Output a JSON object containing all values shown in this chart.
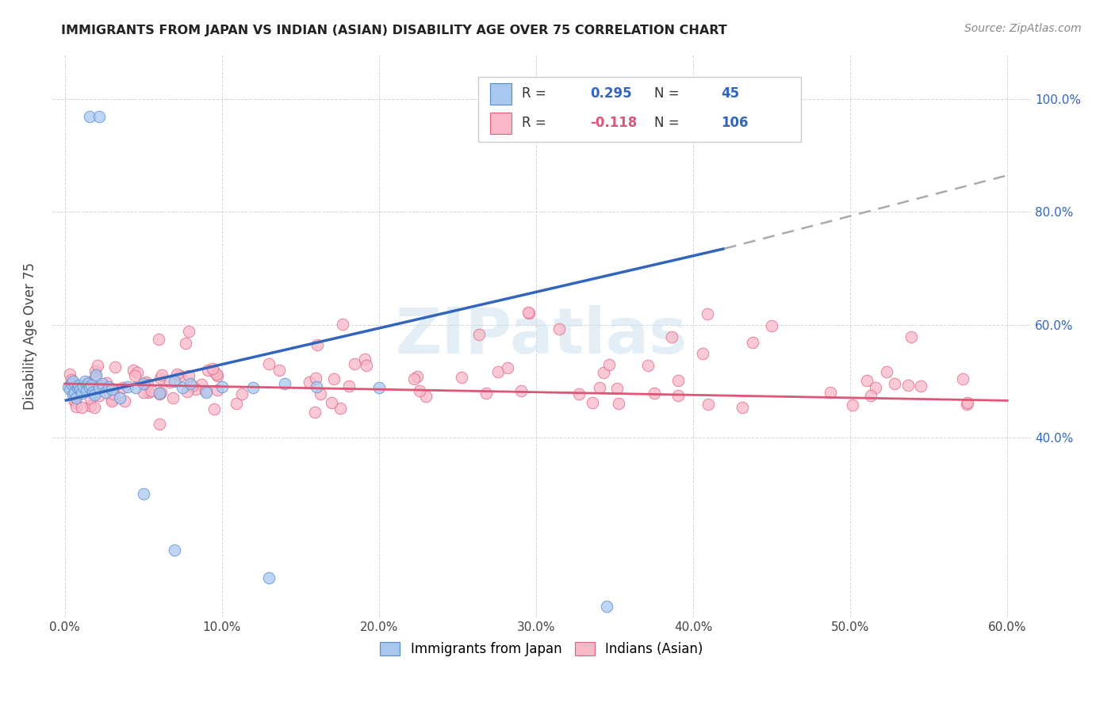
{
  "title": "IMMIGRANTS FROM JAPAN VS INDIAN (ASIAN) DISABILITY AGE OVER 75 CORRELATION CHART",
  "source": "Source: ZipAtlas.com",
  "ylabel": "Disability Age Over 75",
  "japan_color": "#a8c8f0",
  "japan_edge_color": "#5588cc",
  "indian_color": "#f8b8c8",
  "indian_edge_color": "#e06080",
  "japan_line_color": "#3366bb",
  "indian_line_color": "#dd5577",
  "dash_color": "#aaaaaa",
  "r_japan": "0.295",
  "n_japan": "45",
  "r_indian": "-0.118",
  "n_indian": "106",
  "stat_color_blue": "#3366bb",
  "stat_color_pink": "#dd5577",
  "watermark": "ZIPatlas",
  "japan_trend_solid": [
    0.0,
    0.42,
    0.465,
    0.735
  ],
  "japan_trend_dash": [
    0.42,
    0.6,
    0.735,
    0.865
  ],
  "indian_trend": [
    0.0,
    0.6,
    0.495,
    0.465
  ]
}
